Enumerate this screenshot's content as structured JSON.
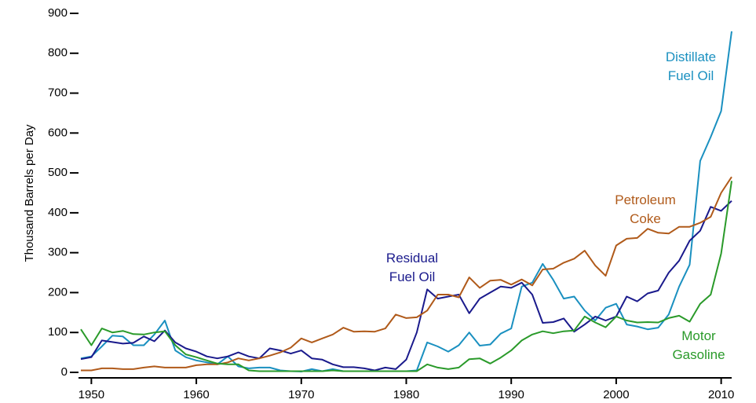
{
  "chart_data": {
    "type": "line",
    "y_label": "Thousand Barrels per Day",
    "x": [
      1949,
      1950,
      1951,
      1952,
      1953,
      1954,
      1955,
      1956,
      1957,
      1958,
      1959,
      1960,
      1961,
      1962,
      1963,
      1964,
      1965,
      1966,
      1967,
      1968,
      1969,
      1970,
      1971,
      1972,
      1973,
      1974,
      1975,
      1976,
      1977,
      1978,
      1979,
      1980,
      1981,
      1982,
      1983,
      1984,
      1985,
      1986,
      1987,
      1988,
      1989,
      1990,
      1991,
      1992,
      1993,
      1994,
      1995,
      1996,
      1997,
      1998,
      1999,
      2000,
      2001,
      2002,
      2003,
      2004,
      2005,
      2006,
      2007,
      2008,
      2009,
      2010,
      2011
    ],
    "series": [
      {
        "name": "Distillate Fuel Oil",
        "color": "#1a90c0",
        "values": [
          35,
          40,
          65,
          92,
          90,
          68,
          68,
          95,
          130,
          55,
          38,
          30,
          25,
          20,
          40,
          15,
          10,
          12,
          12,
          5,
          3,
          2,
          8,
          3,
          8,
          3,
          3,
          3,
          3,
          3,
          3,
          3,
          5,
          75,
          65,
          52,
          68,
          100,
          67,
          70,
          97,
          110,
          215,
          225,
          272,
          232,
          185,
          190,
          155,
          130,
          162,
          172,
          120,
          115,
          108,
          112,
          145,
          215,
          270,
          530,
          590,
          655,
          855
        ]
      },
      {
        "name": "Residual Fuel Oil",
        "color": "#1a1a8c",
        "values": [
          33,
          38,
          80,
          76,
          72,
          74,
          90,
          78,
          105,
          75,
          60,
          52,
          40,
          35,
          40,
          50,
          40,
          35,
          60,
          55,
          47,
          55,
          35,
          32,
          20,
          13,
          13,
          10,
          5,
          12,
          8,
          32,
          100,
          208,
          185,
          190,
          195,
          148,
          185,
          200,
          215,
          212,
          225,
          195,
          124,
          126,
          135,
          102,
          120,
          140,
          130,
          140,
          190,
          178,
          198,
          205,
          250,
          280,
          330,
          355,
          415,
          405,
          430
        ]
      },
      {
        "name": "Petroleum Coke",
        "color": "#b05a1a",
        "values": [
          5,
          5,
          10,
          10,
          8,
          8,
          12,
          15,
          12,
          12,
          12,
          18,
          20,
          20,
          25,
          35,
          30,
          35,
          42,
          50,
          62,
          85,
          75,
          85,
          95,
          112,
          102,
          103,
          102,
          110,
          145,
          136,
          138,
          155,
          195,
          195,
          188,
          238,
          212,
          230,
          232,
          220,
          233,
          218,
          258,
          260,
          275,
          285,
          305,
          268,
          242,
          318,
          335,
          337,
          360,
          350,
          348,
          365,
          365,
          375,
          390,
          450,
          490
        ]
      },
      {
        "name": "Motor Gasoline",
        "color": "#2a9a2a",
        "values": [
          108,
          68,
          110,
          100,
          104,
          96,
          95,
          100,
          103,
          68,
          45,
          38,
          30,
          22,
          20,
          20,
          5,
          3,
          3,
          3,
          3,
          3,
          3,
          3,
          5,
          3,
          3,
          3,
          3,
          3,
          3,
          3,
          3,
          20,
          12,
          8,
          12,
          33,
          35,
          22,
          37,
          55,
          80,
          95,
          103,
          98,
          103,
          105,
          140,
          125,
          113,
          140,
          130,
          125,
          126,
          125,
          136,
          142,
          127,
          172,
          195,
          298,
          480
        ]
      }
    ],
    "xlim": [
      1949,
      2011
    ],
    "xticks": [
      1950,
      1960,
      1970,
      1980,
      1990,
      2000,
      2010
    ],
    "ylim": [
      0,
      900
    ],
    "yticks": [
      0,
      100,
      200,
      300,
      400,
      500,
      600,
      700,
      800,
      900
    ]
  }
}
